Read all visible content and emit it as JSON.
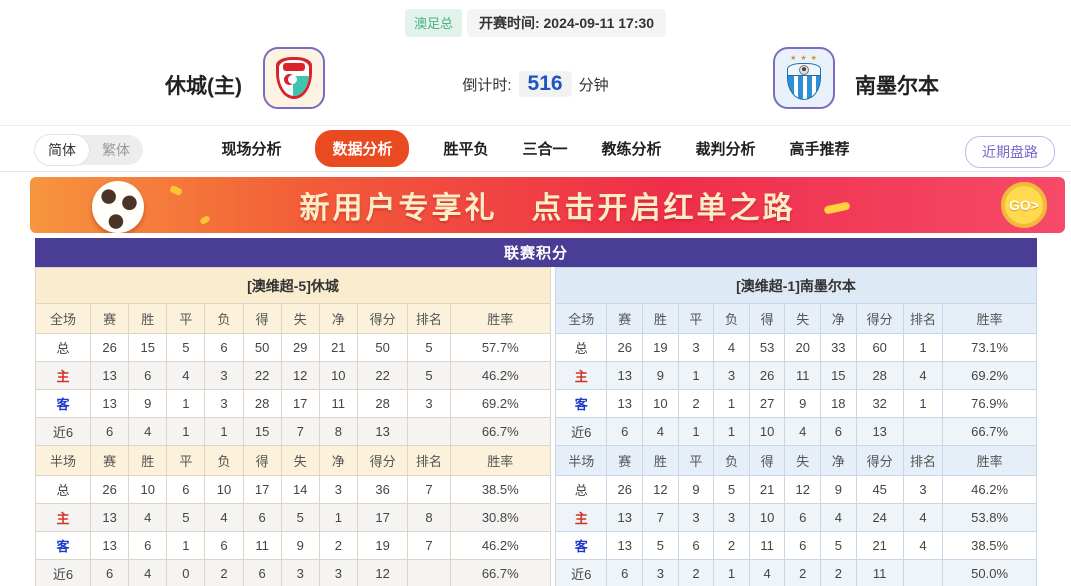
{
  "header": {
    "league_badge": "澳足总",
    "kickoff_label": "开赛时间:",
    "kickoff_time": "2024-09-11 17:30",
    "home_team": "休城(主)",
    "away_team": "南墨尔本",
    "countdown_label": "倒计时:",
    "countdown_value": "516",
    "countdown_unit": "分钟"
  },
  "nav": {
    "lang_simplified": "简体",
    "lang_traditional": "繁体",
    "tabs": [
      "现场分析",
      "数据分析",
      "胜平负",
      "三合一",
      "教练分析",
      "裁判分析",
      "高手推荐"
    ],
    "active_tab": "数据分析",
    "recent_button": "近期盘路"
  },
  "banner": {
    "text1": "新用户专享礼",
    "text2": "点击开启红单之路",
    "go_label": "GO>"
  },
  "league_table": {
    "title": "联赛积分",
    "columns_full": [
      "全场",
      "赛",
      "胜",
      "平",
      "负",
      "得",
      "失",
      "净",
      "得分",
      "排名",
      "胜率"
    ],
    "columns_half": [
      "半场",
      "赛",
      "胜",
      "平",
      "负",
      "得",
      "失",
      "净",
      "得分",
      "排名",
      "胜率"
    ],
    "home": {
      "subtitle": "[澳维超-5]休城",
      "full": [
        [
          "总",
          "26",
          "15",
          "5",
          "6",
          "50",
          "29",
          "21",
          "50",
          "5",
          "57.7%"
        ],
        [
          "主",
          "13",
          "6",
          "4",
          "3",
          "22",
          "12",
          "10",
          "22",
          "5",
          "46.2%"
        ],
        [
          "客",
          "13",
          "9",
          "1",
          "3",
          "28",
          "17",
          "11",
          "28",
          "3",
          "69.2%"
        ],
        [
          "近6",
          "6",
          "4",
          "1",
          "1",
          "15",
          "7",
          "8",
          "13",
          "",
          "66.7%"
        ]
      ],
      "half": [
        [
          "总",
          "26",
          "10",
          "6",
          "10",
          "17",
          "14",
          "3",
          "36",
          "7",
          "38.5%"
        ],
        [
          "主",
          "13",
          "4",
          "5",
          "4",
          "6",
          "5",
          "1",
          "17",
          "8",
          "30.8%"
        ],
        [
          "客",
          "13",
          "6",
          "1",
          "6",
          "11",
          "9",
          "2",
          "19",
          "7",
          "46.2%"
        ],
        [
          "近6",
          "6",
          "4",
          "0",
          "2",
          "6",
          "3",
          "3",
          "12",
          "",
          "66.7%"
        ]
      ]
    },
    "away": {
      "subtitle": "[澳维超-1]南墨尔本",
      "full": [
        [
          "总",
          "26",
          "19",
          "3",
          "4",
          "53",
          "20",
          "33",
          "60",
          "1",
          "73.1%"
        ],
        [
          "主",
          "13",
          "9",
          "1",
          "3",
          "26",
          "11",
          "15",
          "28",
          "4",
          "69.2%"
        ],
        [
          "客",
          "13",
          "10",
          "2",
          "1",
          "27",
          "9",
          "18",
          "32",
          "1",
          "76.9%"
        ],
        [
          "近6",
          "6",
          "4",
          "1",
          "1",
          "10",
          "4",
          "6",
          "13",
          "",
          "66.7%"
        ]
      ],
      "half": [
        [
          "总",
          "26",
          "12",
          "9",
          "5",
          "21",
          "12",
          "9",
          "45",
          "3",
          "46.2%"
        ],
        [
          "主",
          "13",
          "7",
          "3",
          "3",
          "10",
          "6",
          "4",
          "24",
          "4",
          "53.8%"
        ],
        [
          "客",
          "13",
          "5",
          "6",
          "2",
          "11",
          "6",
          "5",
          "21",
          "4",
          "38.5%"
        ],
        [
          "近6",
          "6",
          "3",
          "2",
          "1",
          "4",
          "2",
          "2",
          "11",
          "",
          "50.0%"
        ]
      ]
    }
  },
  "colors": {
    "header_purple": "#4a3d96",
    "active_tab_orange": "#ea4a1f",
    "banner_gradient_start": "#f7953e",
    "banner_gradient_end": "#ee2e4c",
    "home_cream_bg": "#faeccf",
    "away_blue_bg": "#dde9f4",
    "home_row_label_red": "#d0342c",
    "away_row_label_blue": "#1c39cb",
    "badge_green": "#49b286",
    "countdown_blue": "#1d54c6",
    "recent_btn_purple": "#7b68cc"
  }
}
